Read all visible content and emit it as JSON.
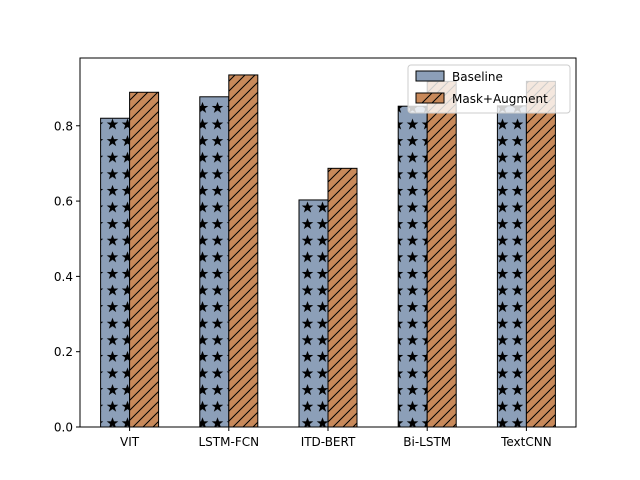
{
  "chart_data": {
    "type": "bar",
    "title": "",
    "xlabel": "",
    "ylabel": "",
    "categories": [
      "VIT",
      "LSTM-FCN",
      "ITD-BERT",
      "Bi-LSTM",
      "TextCNN"
    ],
    "series": [
      {
        "name": "Baseline",
        "values": [
          0.82,
          0.877,
          0.603,
          0.852,
          0.853
        ],
        "color": "#8c9fb8",
        "hatch": "stars"
      },
      {
        "name": "Mask+Augment",
        "values": [
          0.889,
          0.935,
          0.687,
          0.918,
          0.918
        ],
        "color": "#c8895a",
        "hatch": "diagonal"
      }
    ],
    "ylim": [
      0,
      0.98
    ],
    "yticks": [
      0.0,
      0.2,
      0.4,
      0.6,
      0.8
    ],
    "ytick_labels": [
      "0.0",
      "0.2",
      "0.4",
      "0.6",
      "0.8"
    ],
    "legend": {
      "placement": "top-right"
    },
    "grid": false
  }
}
